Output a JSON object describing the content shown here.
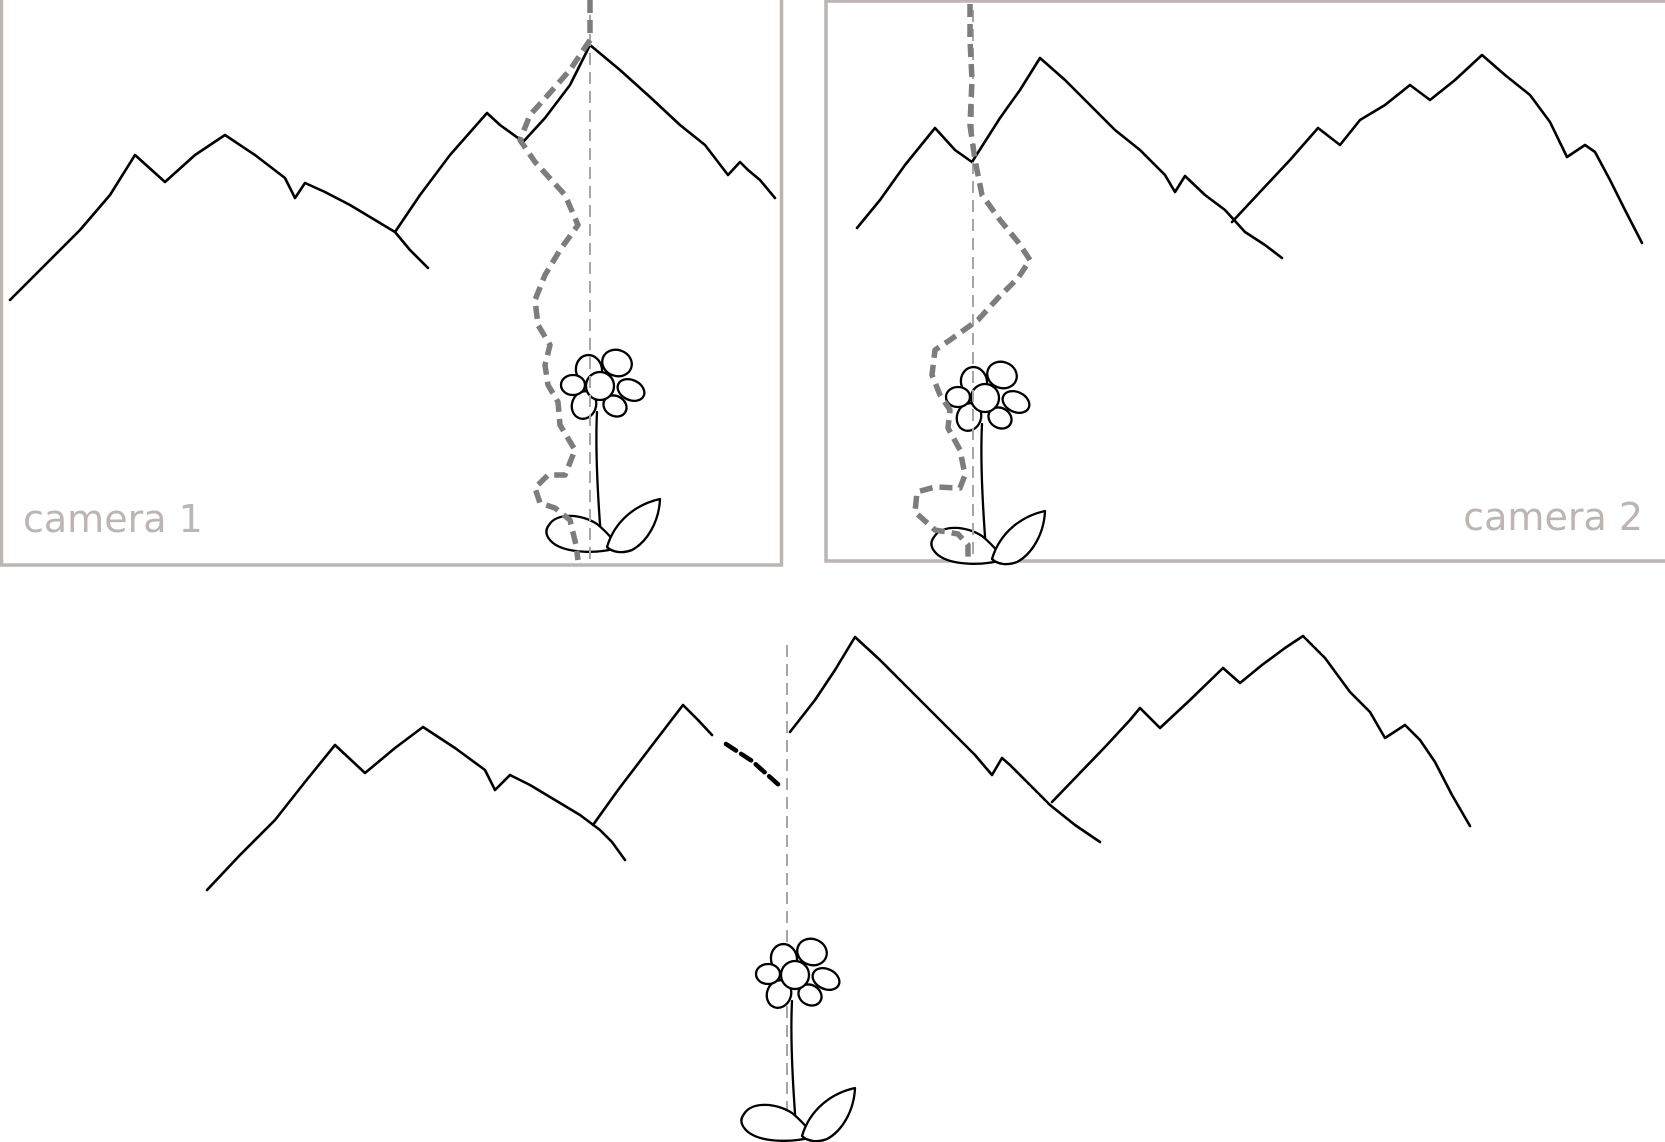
{
  "panels": [
    {
      "id": "camera-1",
      "label": "camera 1"
    },
    {
      "id": "camera-2",
      "label": "camera 2"
    }
  ],
  "colors": {
    "frame": "#bdb4b4",
    "label": "#bdb4b4",
    "ink": "#000000",
    "seam": "#7d7d7d",
    "center_line": "#a6a6a6",
    "background": "#ffffff"
  },
  "icons": {
    "flower": "flower-icon",
    "mountains": "mountain-range-icon"
  }
}
